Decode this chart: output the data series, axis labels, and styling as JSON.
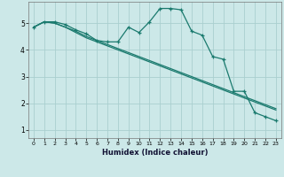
{
  "title": "",
  "xlabel": "Humidex (Indice chaleur)",
  "background_color": "#cce8e8",
  "grid_color": "#aacfcf",
  "line_color": "#1a7a6e",
  "xlim": [
    -0.5,
    23.5
  ],
  "ylim": [
    0.7,
    5.8
  ],
  "yticks": [
    1,
    2,
    3,
    4,
    5
  ],
  "xticks": [
    0,
    1,
    2,
    3,
    4,
    5,
    6,
    7,
    8,
    9,
    10,
    11,
    12,
    13,
    14,
    15,
    16,
    17,
    18,
    19,
    20,
    21,
    22,
    23
  ],
  "series1_x": [
    0,
    1,
    2,
    3,
    4,
    5,
    6,
    7,
    8,
    9,
    10,
    11,
    12,
    13,
    14,
    15,
    16,
    17,
    18,
    19,
    20,
    21,
    22,
    23
  ],
  "series1_y": [
    4.85,
    5.05,
    5.05,
    4.95,
    4.75,
    4.6,
    4.35,
    4.3,
    4.3,
    4.85,
    4.65,
    5.05,
    5.55,
    5.55,
    5.5,
    4.7,
    4.55,
    3.75,
    3.65,
    2.45,
    2.45,
    1.65,
    1.5,
    1.35
  ],
  "series2_x": [
    0,
    1,
    2,
    3,
    4,
    5,
    6,
    7,
    8,
    9,
    10,
    11,
    12,
    13,
    14,
    15,
    16,
    17,
    18,
    19,
    20,
    21,
    22,
    23
  ],
  "series2_y": [
    4.85,
    5.05,
    5.0,
    4.85,
    4.65,
    4.45,
    4.3,
    4.15,
    4.0,
    3.85,
    3.7,
    3.55,
    3.4,
    3.25,
    3.1,
    2.95,
    2.8,
    2.65,
    2.5,
    2.35,
    2.2,
    2.05,
    1.9,
    1.75
  ],
  "series3_x": [
    0,
    1,
    2,
    3,
    4,
    5,
    6,
    7,
    8,
    9,
    10,
    11,
    12,
    13,
    14,
    15,
    16,
    17,
    18,
    19,
    20,
    21,
    22,
    23
  ],
  "series3_y": [
    4.85,
    5.05,
    5.0,
    4.85,
    4.7,
    4.5,
    4.35,
    4.2,
    4.05,
    3.9,
    3.75,
    3.6,
    3.45,
    3.3,
    3.15,
    3.0,
    2.85,
    2.7,
    2.55,
    2.4,
    2.25,
    2.1,
    1.95,
    1.8
  ]
}
